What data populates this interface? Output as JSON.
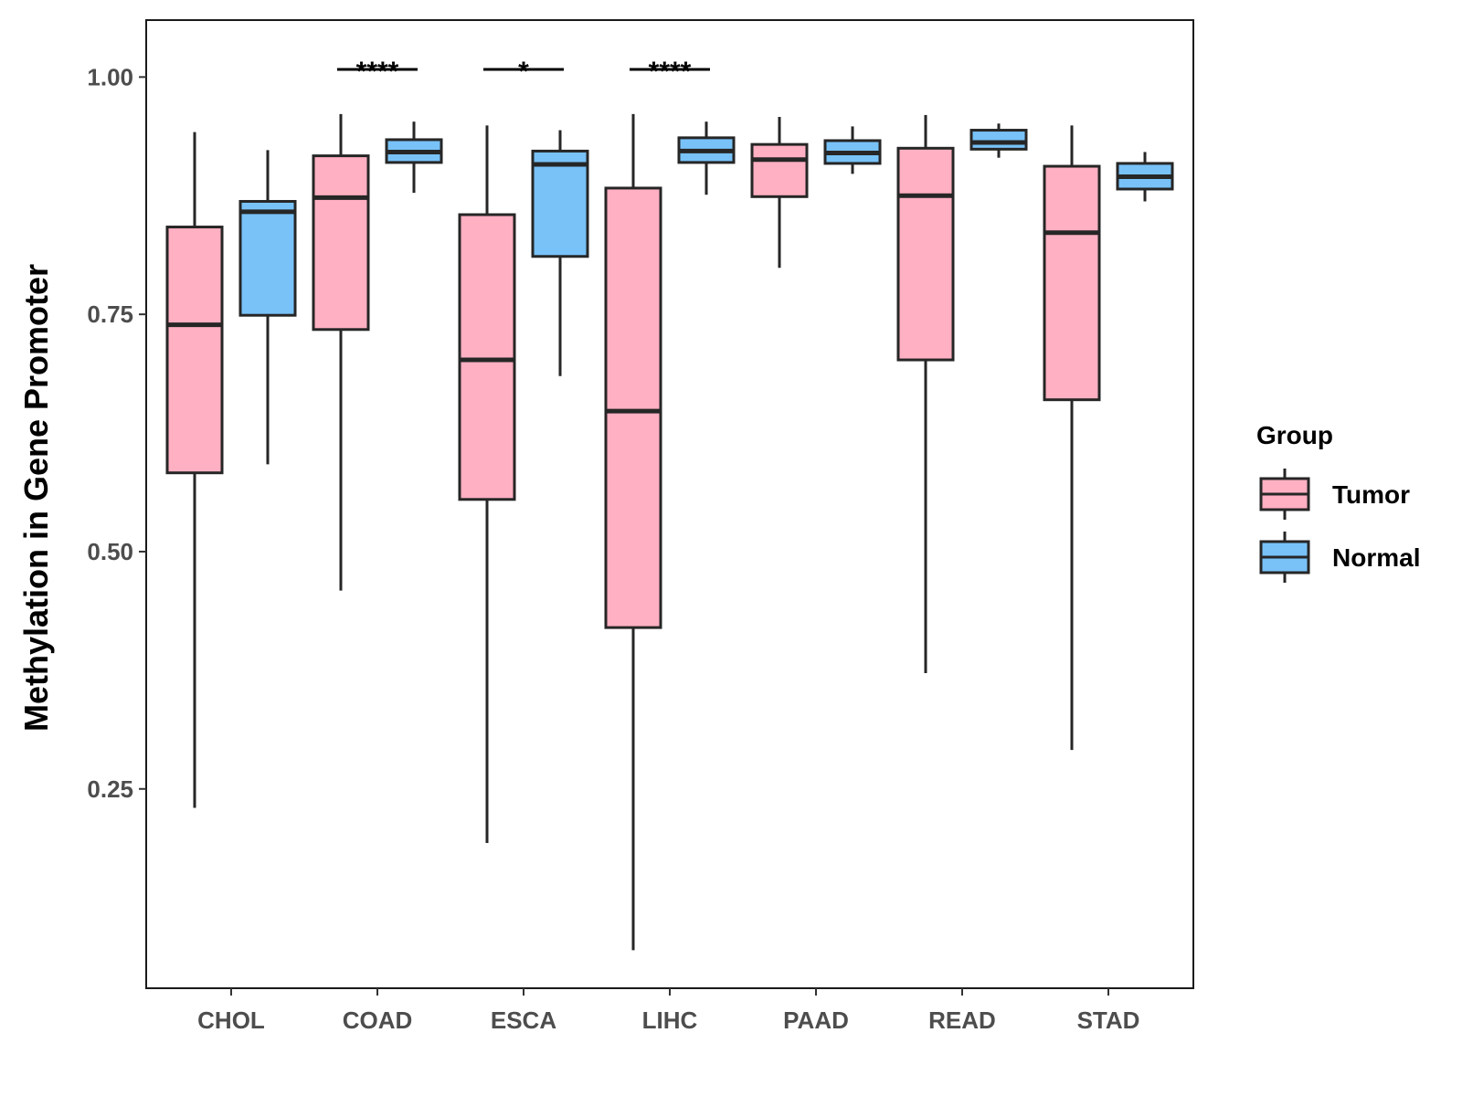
{
  "chart_data": {
    "type": "boxplot",
    "title": "",
    "xlabel": "",
    "ylabel": "Methylation in Gene Promoter",
    "ylim": [
      0.04,
      1.06
    ],
    "yticks": [
      0.25,
      0.5,
      0.75,
      1.0
    ],
    "ytick_labels": [
      "0.25",
      "0.50",
      "0.75",
      "1.00"
    ],
    "categories": [
      "CHOL",
      "COAD",
      "ESCA",
      "LIHC",
      "PAAD",
      "READ",
      "STAD"
    ],
    "legend": {
      "title": "Group",
      "position": "right",
      "entries": [
        "Tumor",
        "Normal"
      ]
    },
    "colors": {
      "Tumor": "#ffb0c2",
      "Normal": "#78c2f8",
      "stroke": "#262626"
    },
    "series": [
      {
        "name": "Tumor",
        "boxes": [
          {
            "category": "CHOL",
            "min": 0.23,
            "q1": 0.583,
            "median": 0.739,
            "q3": 0.842,
            "max": 0.942
          },
          {
            "category": "COAD",
            "min": 0.459,
            "q1": 0.734,
            "median": 0.873,
            "q3": 0.917,
            "max": 0.961
          },
          {
            "category": "ESCA",
            "min": 0.193,
            "q1": 0.555,
            "median": 0.702,
            "q3": 0.855,
            "max": 0.949
          },
          {
            "category": "LIHC",
            "min": 0.08,
            "q1": 0.42,
            "median": 0.648,
            "q3": 0.883,
            "max": 0.961
          },
          {
            "category": "PAAD",
            "min": 0.799,
            "q1": 0.874,
            "median": 0.913,
            "q3": 0.929,
            "max": 0.958
          },
          {
            "category": "READ",
            "min": 0.372,
            "q1": 0.702,
            "median": 0.875,
            "q3": 0.925,
            "max": 0.96
          },
          {
            "category": "STAD",
            "min": 0.291,
            "q1": 0.66,
            "median": 0.836,
            "q3": 0.906,
            "max": 0.949
          }
        ]
      },
      {
        "name": "Normal",
        "boxes": [
          {
            "category": "CHOL",
            "min": 0.592,
            "q1": 0.749,
            "median": 0.858,
            "q3": 0.869,
            "max": 0.923
          },
          {
            "category": "COAD",
            "min": 0.878,
            "q1": 0.91,
            "median": 0.921,
            "q3": 0.934,
            "max": 0.953
          },
          {
            "category": "ESCA",
            "min": 0.685,
            "q1": 0.811,
            "median": 0.908,
            "q3": 0.922,
            "max": 0.944
          },
          {
            "category": "LIHC",
            "min": 0.876,
            "q1": 0.91,
            "median": 0.922,
            "q3": 0.936,
            "max": 0.953
          },
          {
            "category": "PAAD",
            "min": 0.898,
            "q1": 0.909,
            "median": 0.92,
            "q3": 0.933,
            "max": 0.948
          },
          {
            "category": "READ",
            "min": 0.915,
            "q1": 0.924,
            "median": 0.931,
            "q3": 0.944,
            "max": 0.951
          },
          {
            "category": "STAD",
            "min": 0.869,
            "q1": 0.882,
            "median": 0.895,
            "q3": 0.909,
            "max": 0.921
          }
        ]
      }
    ],
    "annotations": [
      {
        "category": "COAD",
        "label": "****",
        "y": 1.008
      },
      {
        "category": "ESCA",
        "label": "*",
        "y": 1.008
      },
      {
        "category": "LIHC",
        "label": "****",
        "y": 1.008
      }
    ]
  }
}
